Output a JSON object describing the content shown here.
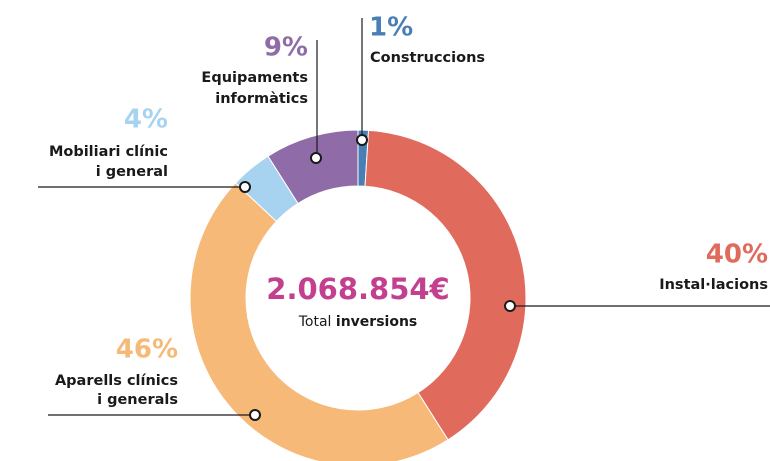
{
  "chart_data": {
    "type": "pie",
    "categories": [
      [
        "Construccions"
      ],
      [
        "Instal·lacions"
      ],
      [
        "Aparells clínics",
        "i generals"
      ],
      [
        "Mobiliari clínic",
        "i general"
      ],
      [
        "Equipaments",
        "informàtics"
      ]
    ],
    "values": [
      1,
      40,
      46,
      4,
      9
    ],
    "value_labels": [
      "1%",
      "40%",
      "46%",
      "4%",
      "9%"
    ],
    "colors": [
      "#4a7fb5",
      "#e06b5d",
      "#f7b978",
      "#a8d3f0",
      "#8f6ba8"
    ],
    "total_label": "2.068.854€",
    "total_caption": [
      "Total",
      "inversions"
    ]
  }
}
